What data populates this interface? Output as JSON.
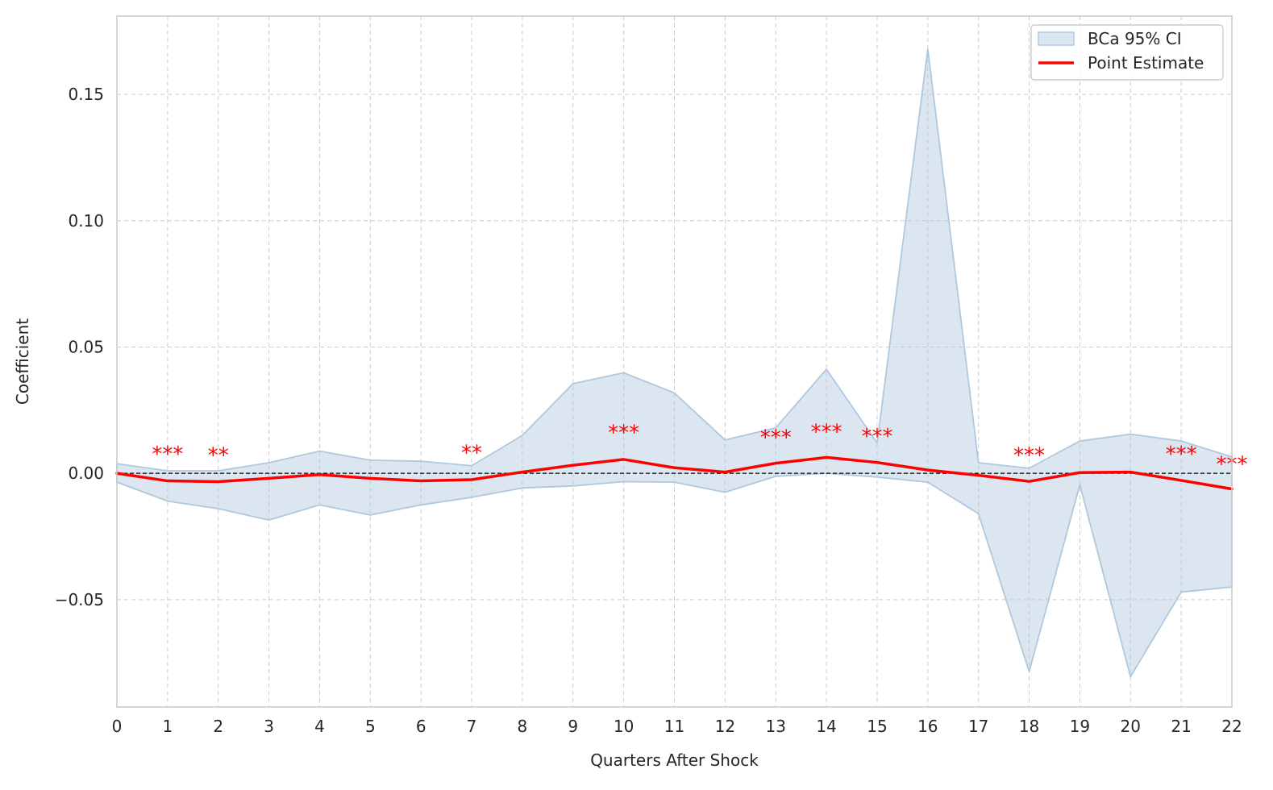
{
  "chart_data": {
    "type": "line",
    "xlabel": "Quarters After Shock",
    "ylabel": "Coefficient",
    "xlim": [
      0,
      22
    ],
    "ylim": [
      -0.0925,
      0.181
    ],
    "x_ticks": [
      0,
      1,
      2,
      3,
      4,
      5,
      6,
      7,
      8,
      9,
      10,
      11,
      12,
      13,
      14,
      15,
      16,
      17,
      18,
      19,
      20,
      21,
      22
    ],
    "y_ticks": [
      -0.05,
      0.0,
      0.05,
      0.1,
      0.15
    ],
    "y_tick_labels": [
      "−0.05",
      "0.00",
      "0.05",
      "0.10",
      "0.15"
    ],
    "grid": true,
    "zero_line": true,
    "legend_position": "top-right",
    "x": [
      0,
      1,
      2,
      3,
      4,
      5,
      6,
      7,
      8,
      9,
      10,
      11,
      12,
      13,
      14,
      15,
      16,
      17,
      18,
      19,
      20,
      21,
      22
    ],
    "series": [
      {
        "name": "Point Estimate",
        "color": "#ff0000",
        "values": [
          0.0,
          -0.003,
          -0.0033,
          -0.002,
          -0.0005,
          -0.002,
          -0.003,
          -0.0025,
          0.0005,
          0.0032,
          0.0055,
          0.0022,
          0.0005,
          0.004,
          0.0063,
          0.0043,
          0.0013,
          -0.0008,
          -0.0032,
          0.0003,
          0.0005,
          -0.0028,
          -0.0062
        ]
      },
      {
        "name": "BCa 95% CI",
        "type": "band",
        "color": "#b0c8de",
        "lower": [
          -0.0035,
          -0.011,
          -0.014,
          -0.0185,
          -0.0125,
          -0.0165,
          -0.0125,
          -0.0095,
          -0.0058,
          -0.005,
          -0.0033,
          -0.0035,
          -0.0075,
          -0.0012,
          0.0,
          -0.0015,
          -0.0035,
          -0.016,
          -0.0785,
          -0.0045,
          -0.0805,
          -0.047,
          -0.045
        ],
        "upper": [
          0.0038,
          0.001,
          0.001,
          0.0042,
          0.0088,
          0.0052,
          0.0048,
          0.003,
          0.015,
          0.0355,
          0.0398,
          0.0318,
          0.0132,
          0.018,
          0.0412,
          0.012,
          0.168,
          0.0042,
          0.002,
          0.0128,
          0.0155,
          0.0128,
          0.0065
        ]
      }
    ],
    "annotations": [
      {
        "x": 1,
        "y": 0.009,
        "text": "***"
      },
      {
        "x": 2,
        "y": 0.0085,
        "text": "**"
      },
      {
        "x": 7,
        "y": 0.0095,
        "text": "**"
      },
      {
        "x": 10,
        "y": 0.0175,
        "text": "***"
      },
      {
        "x": 13,
        "y": 0.0155,
        "text": "***"
      },
      {
        "x": 14,
        "y": 0.0178,
        "text": "***"
      },
      {
        "x": 15,
        "y": 0.016,
        "text": "***"
      },
      {
        "x": 18,
        "y": 0.0085,
        "text": "***"
      },
      {
        "x": 21,
        "y": 0.009,
        "text": "***"
      },
      {
        "x": 22,
        "y": 0.005,
        "text": "***"
      }
    ],
    "legend": [
      {
        "label": "BCa 95% CI",
        "kind": "band"
      },
      {
        "label": "Point Estimate",
        "kind": "line"
      }
    ]
  }
}
